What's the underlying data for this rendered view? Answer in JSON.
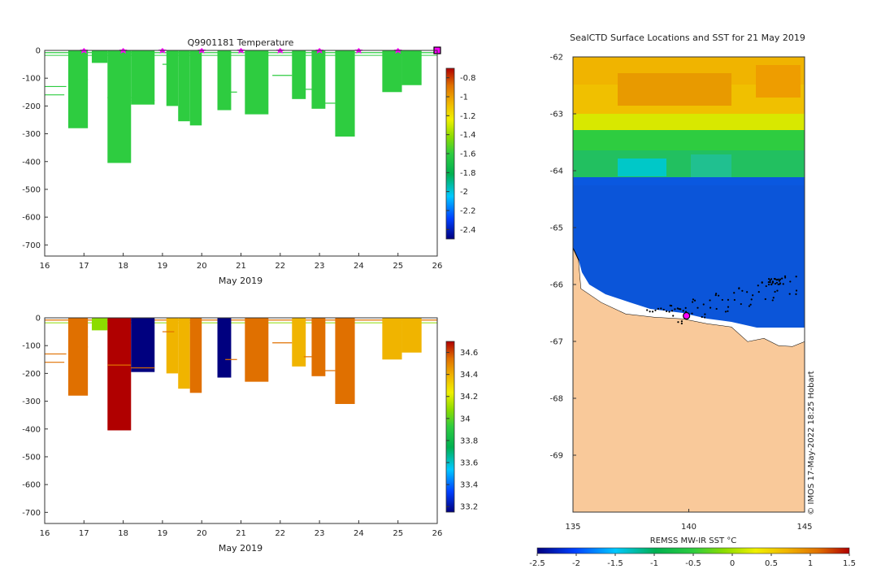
{
  "colors": {
    "cmap": [
      "#00007f",
      "#0040ff",
      "#00c8ff",
      "#00b050",
      "#2ecc40",
      "#8cdc00",
      "#f0f000",
      "#f0b400",
      "#e07000",
      "#b00000"
    ],
    "land": "#f9c99a",
    "deep_blue": "#0b55d9",
    "marker": "#ff00ff"
  },
  "chart_data": [
    {
      "type": "heatmap",
      "title": "Q9901181  Temperature",
      "xlabel": "May 2019",
      "ylabel": "",
      "xlim": [
        16,
        26
      ],
      "ylim": [
        -740,
        0
      ],
      "xticks": [
        "16",
        "17",
        "18",
        "19",
        "20",
        "21",
        "22",
        "23",
        "24",
        "25",
        "26"
      ],
      "yticks": [
        "0",
        "-100",
        "-200",
        "-300",
        "-400",
        "-500",
        "-600",
        "-700"
      ],
      "colorbar": {
        "min": -2.5,
        "max": -0.7,
        "ticks": [
          "-0.8",
          "-1",
          "-1.2",
          "-1.4",
          "-1.6",
          "-1.8",
          "-2",
          "-2.2",
          "-2.4"
        ]
      },
      "profiles": [
        {
          "x": 16.6,
          "w": 0.5,
          "depth": 280,
          "value": -1.75
        },
        {
          "x": 17.2,
          "w": 0.4,
          "depth": 45,
          "value": -1.72
        },
        {
          "x": 17.6,
          "w": 0.6,
          "depth": 405,
          "value": -1.65
        },
        {
          "x": 18.2,
          "w": 0.6,
          "depth": 195,
          "value": -1.75
        },
        {
          "x": 19.1,
          "w": 0.3,
          "depth": 200,
          "value": -1.72
        },
        {
          "x": 19.4,
          "w": 0.3,
          "depth": 255,
          "value": -1.75
        },
        {
          "x": 19.7,
          "w": 0.3,
          "depth": 270,
          "value": -1.74
        },
        {
          "x": 20.4,
          "w": 0.35,
          "depth": 215,
          "value": -1.7
        },
        {
          "x": 21.1,
          "w": 0.6,
          "depth": 230,
          "value": -1.72
        },
        {
          "x": 22.3,
          "w": 0.35,
          "depth": 175,
          "value": -1.74
        },
        {
          "x": 22.8,
          "w": 0.35,
          "depth": 210,
          "value": -1.73
        },
        {
          "x": 23.4,
          "w": 0.5,
          "depth": 310,
          "value": -1.72
        },
        {
          "x": 24.6,
          "w": 0.5,
          "depth": 150,
          "value": -1.76
        },
        {
          "x": 25.1,
          "w": 0.5,
          "depth": 125,
          "value": -1.77
        }
      ],
      "surface_markers_x": [
        17,
        18,
        19,
        20,
        21,
        22,
        23,
        24,
        25
      ],
      "current_position_x": 26
    },
    {
      "type": "heatmap",
      "title": "",
      "xlabel": "May 2019",
      "ylabel": "",
      "xlim": [
        16,
        26
      ],
      "ylim": [
        -740,
        0
      ],
      "xticks": [
        "16",
        "17",
        "18",
        "19",
        "20",
        "21",
        "22",
        "23",
        "24",
        "25",
        "26"
      ],
      "yticks": [
        "0",
        "-100",
        "-200",
        "-300",
        "-400",
        "-500",
        "-600",
        "-700"
      ],
      "colorbar": {
        "min": 33.15,
        "max": 34.7,
        "ticks": [
          "34.6",
          "34.4",
          "34.2",
          "34",
          "33.8",
          "33.6",
          "33.4",
          "33.2"
        ]
      },
      "profiles": [
        {
          "x": 16.6,
          "w": 0.5,
          "depth": 280,
          "value": 34.42
        },
        {
          "x": 17.2,
          "w": 0.4,
          "depth": 45,
          "value": 34.05
        },
        {
          "x": 17.6,
          "w": 0.6,
          "depth": 405,
          "value": 34.55
        },
        {
          "x": 18.2,
          "w": 0.6,
          "depth": 195,
          "value": 33.2
        },
        {
          "x": 19.1,
          "w": 0.3,
          "depth": 200,
          "value": 34.3
        },
        {
          "x": 19.4,
          "w": 0.3,
          "depth": 255,
          "value": 34.38
        },
        {
          "x": 19.7,
          "w": 0.3,
          "depth": 270,
          "value": 34.4
        },
        {
          "x": 20.4,
          "w": 0.35,
          "depth": 215,
          "value": 33.2
        },
        {
          "x": 21.1,
          "w": 0.6,
          "depth": 230,
          "value": 34.42
        },
        {
          "x": 22.3,
          "w": 0.35,
          "depth": 175,
          "value": 34.3
        },
        {
          "x": 22.8,
          "w": 0.35,
          "depth": 210,
          "value": 34.45
        },
        {
          "x": 23.4,
          "w": 0.5,
          "depth": 310,
          "value": 34.4
        },
        {
          "x": 24.6,
          "w": 0.5,
          "depth": 150,
          "value": 34.38
        },
        {
          "x": 25.1,
          "w": 0.5,
          "depth": 125,
          "value": 34.35
        }
      ]
    },
    {
      "type": "heatmap",
      "title": "SealCTD Surface Locations and SST for 21 May 2019",
      "xlabel": "",
      "ylabel": "",
      "xlim": [
        135,
        145
      ],
      "ylim": [
        -70,
        -62
      ],
      "xticks": [
        "135",
        "140",
        "145"
      ],
      "yticks": [
        "-62",
        "-63",
        "-64",
        "-65",
        "-66",
        "-67",
        "-68",
        "-69"
      ],
      "colorbar": {
        "label": "REMSS MW-IR SST °C",
        "min": -2.5,
        "max": 1.5,
        "ticks": [
          "-2.5",
          "-2",
          "-1.5",
          "-1",
          "-0.5",
          "0",
          "0.5",
          "1",
          "1.5"
        ]
      },
      "current_position": {
        "lon": 139.9,
        "lat": -66.55
      },
      "credit": "© IMOS 17-May-2022 18:25 Hobart"
    }
  ]
}
